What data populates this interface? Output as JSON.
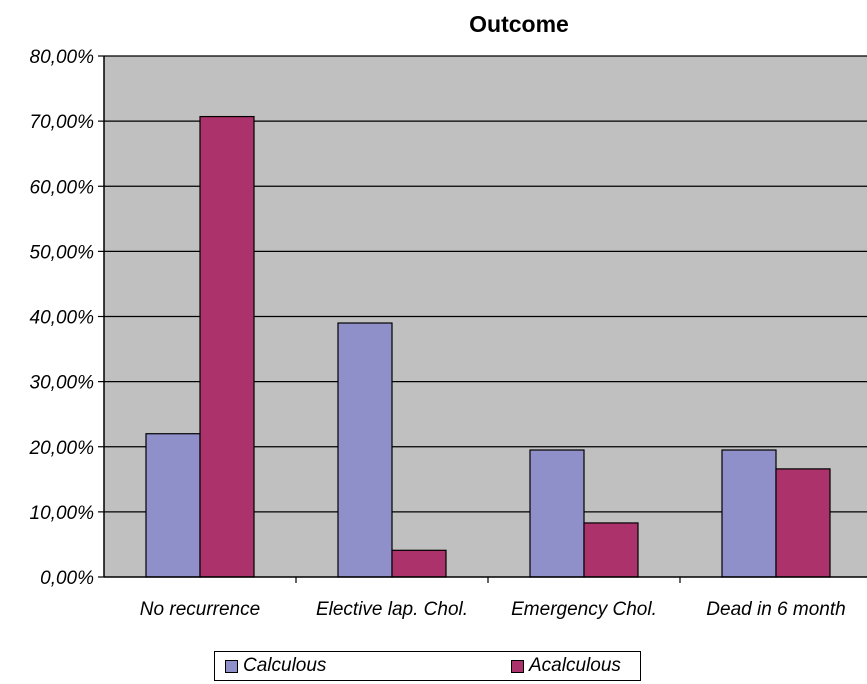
{
  "chart_data": {
    "type": "bar",
    "title": "Outcome",
    "categories": [
      "No recurrence",
      "Elective lap. Chol.",
      "Emergency Chol.",
      "Dead in 6 month"
    ],
    "series": [
      {
        "name": "Calculous",
        "values": [
          22.0,
          39.0,
          19.5,
          19.5
        ],
        "color": "#8f90c9"
      },
      {
        "name": "Acalculous",
        "values": [
          70.7,
          4.1,
          8.3,
          16.6
        ],
        "color": "#ac326b"
      }
    ],
    "ylim": [
      0,
      80
    ],
    "yticks": [
      "0,00%",
      "10,00%",
      "20,00%",
      "30,00%",
      "40,00%",
      "50,00%",
      "60,00%",
      "70,00%",
      "80,00%"
    ],
    "grid": true,
    "plot_background": "#c0c0c0",
    "legend_position": "bottom"
  }
}
